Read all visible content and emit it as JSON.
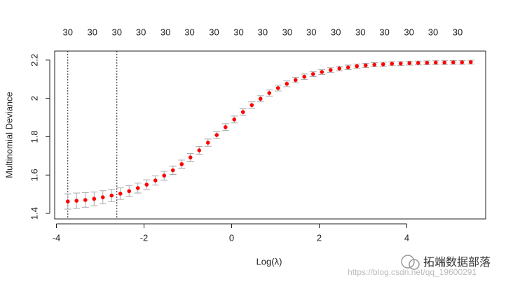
{
  "chart_data": {
    "type": "scatter",
    "x_label": "Log(λ)",
    "y_label": "Multinomial Deviance",
    "x": [
      -3.74,
      -3.54,
      -3.34,
      -3.14,
      -2.94,
      -2.74,
      -2.54,
      -2.34,
      -2.14,
      -1.94,
      -1.74,
      -1.54,
      -1.34,
      -1.14,
      -0.94,
      -0.74,
      -0.54,
      -0.34,
      -0.14,
      0.06,
      0.26,
      0.46,
      0.66,
      0.86,
      1.06,
      1.26,
      1.46,
      1.66,
      1.86,
      2.06,
      2.26,
      2.46,
      2.66,
      2.86,
      3.06,
      3.26,
      3.46,
      3.66,
      3.86,
      4.06,
      4.26,
      4.46,
      4.66,
      4.86,
      5.06,
      5.26,
      5.46
    ],
    "values": [
      1.462,
      1.466,
      1.47,
      1.476,
      1.484,
      1.493,
      1.503,
      1.516,
      1.532,
      1.55,
      1.572,
      1.597,
      1.625,
      1.657,
      1.692,
      1.729,
      1.769,
      1.809,
      1.85,
      1.89,
      1.929,
      1.965,
      1.998,
      2.028,
      2.054,
      2.076,
      2.096,
      2.113,
      2.127,
      2.138,
      2.148,
      2.156,
      2.162,
      2.168,
      2.172,
      2.176,
      2.178,
      2.181,
      2.182,
      2.184,
      2.185,
      2.186,
      2.187,
      2.187,
      2.188,
      2.188,
      2.189
    ],
    "errors": [
      0.04,
      0.04,
      0.038,
      0.036,
      0.034,
      0.032,
      0.03,
      0.028,
      0.026,
      0.025,
      0.024,
      0.023,
      0.022,
      0.021,
      0.02,
      0.02,
      0.019,
      0.019,
      0.018,
      0.018,
      0.017,
      0.017,
      0.016,
      0.016,
      0.015,
      0.015,
      0.014,
      0.014,
      0.013,
      0.013,
      0.012,
      0.012,
      0.012,
      0.011,
      0.011,
      0.011,
      0.011,
      0.01,
      0.01,
      0.01,
      0.01,
      0.01,
      0.01,
      0.01,
      0.01,
      0.01,
      0.01
    ],
    "color": "#ff0000",
    "error_color": "#a8a8a8",
    "xlim": [
      -4.04,
      5.8
    ],
    "ylim": [
      1.371,
      2.247
    ],
    "xticks": [
      -4,
      -2,
      0,
      2,
      4
    ],
    "yticks": [
      1.4,
      1.6,
      1.8,
      2.0,
      2.2
    ],
    "x2ticks": [
      {
        "value": -3.74,
        "label": "30"
      },
      {
        "value": -3.18,
        "label": "30"
      },
      {
        "value": -2.62,
        "label": "30"
      },
      {
        "value": -2.07,
        "label": "30"
      },
      {
        "value": -1.51,
        "label": "30"
      },
      {
        "value": -0.96,
        "label": "30"
      },
      {
        "value": -0.4,
        "label": "30"
      },
      {
        "value": 0.16,
        "label": "30"
      },
      {
        "value": 0.71,
        "label": "30"
      },
      {
        "value": 1.27,
        "label": "30"
      },
      {
        "value": 1.82,
        "label": "30"
      },
      {
        "value": 2.38,
        "label": "30"
      },
      {
        "value": 2.94,
        "label": "30"
      },
      {
        "value": 3.49,
        "label": "30"
      },
      {
        "value": 4.05,
        "label": "30"
      },
      {
        "value": 4.6,
        "label": "30"
      },
      {
        "value": 5.16,
        "label": "30"
      }
    ],
    "vlines": [
      -3.74,
      -2.62
    ],
    "watermark": "拓端数据部落",
    "url": "https://blog.csdn.net/qq_19600291"
  }
}
